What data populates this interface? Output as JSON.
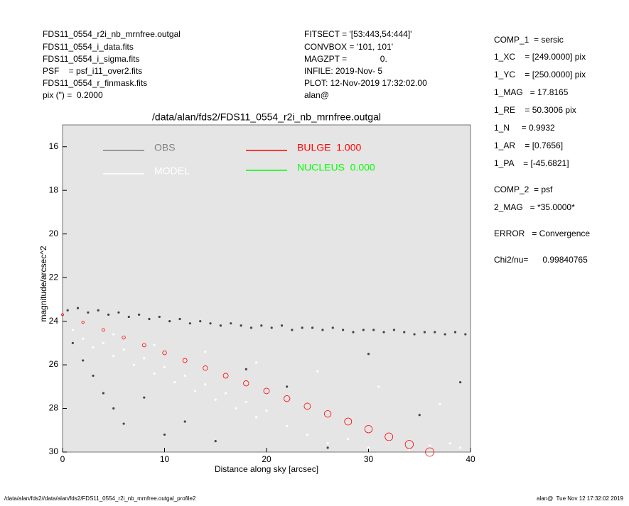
{
  "header": {
    "left": [
      "FDS11_0554_r2i_nb_mrnfree.outgal",
      "FDS11_0554_i_data.fits",
      "FDS11_0554_i_sigma.fits",
      "PSF    = psf_i11_over2.fits",
      "FDS11_0554_r_finmask.fits",
      "pix (\") =  0.2000"
    ],
    "middle": [
      "FITSECT = '[53:443,54:444]'",
      "CONVBOX = '101, 101'",
      "MAGZPT =              0.",
      "INFILE: 2019-Nov- 5",
      "PLOT: 12-Nov-2019 17:32:02.00",
      "alan@"
    ],
    "right": [
      "COMP_1  = sersic",
      "1_XC    = [249.0000] pix",
      "1_YC    = [250.0000] pix",
      "1_MAG   = 17.8165",
      "1_RE    = 50.3006 pix",
      "1_N     = 0.9932",
      "1_AR    = [0.7656]",
      "1_PA    = [-45.6821]",
      "COMP_2  = psf",
      "2_MAG   = *35.0000*",
      "ERROR   = Convergence",
      "Chi2/nu=      0.99840765"
    ]
  },
  "footer": {
    "left": "/data/alan/fds2//data/alan/fds2/FDS11_0554_r2i_nb_mrnfree.outgal_profile2",
    "right": "alan@  Tue Nov 12 17:32:02 2019"
  },
  "chart_data": {
    "type": "scatter",
    "title": "/data/alan/fds2/FDS11_0554_r2i_nb_mrnfree.outgal",
    "xlabel": "Distance along sky [arcsec]",
    "ylabel": "magnitude/arcsec^2",
    "xlim": [
      0,
      40
    ],
    "xticks": [
      0,
      10,
      20,
      30,
      40
    ],
    "ylim": [
      15,
      30
    ],
    "y_inverted": true,
    "yticks": [
      16,
      18,
      20,
      22,
      24,
      26,
      28,
      30
    ],
    "series": [
      {
        "name": "OBS",
        "color": "#444444",
        "legend_color": "#808080",
        "x": [
          0.5,
          1.5,
          2.5,
          3.5,
          4.5,
          5.5,
          6.5,
          7.5,
          8.5,
          9.5,
          10.5,
          11.5,
          12.5,
          13.5,
          14.5,
          15.5,
          16.5,
          17.5,
          18.5,
          19.5,
          20.5,
          21.5,
          22.5,
          23.5,
          24.5,
          25.5,
          26.5,
          27.5,
          28.5,
          29.5,
          30.5,
          31.5,
          32.5,
          33.5,
          34.5,
          35.5,
          36.5,
          37.5,
          38.5,
          39.5,
          1,
          2,
          3,
          4,
          5,
          6,
          8,
          10,
          12,
          15,
          18,
          22,
          26,
          30,
          35,
          39
        ],
        "values": [
          23.5,
          23.4,
          23.6,
          23.5,
          23.7,
          23.6,
          23.8,
          23.7,
          23.9,
          23.8,
          24.0,
          23.9,
          24.1,
          24.0,
          24.1,
          24.2,
          24.1,
          24.2,
          24.3,
          24.2,
          24.3,
          24.2,
          24.4,
          24.3,
          24.3,
          24.4,
          24.3,
          24.4,
          24.5,
          24.4,
          24.4,
          24.5,
          24.4,
          24.5,
          24.6,
          24.5,
          24.5,
          24.6,
          24.5,
          24.6,
          25.0,
          25.8,
          26.5,
          27.3,
          28.0,
          28.7,
          27.5,
          29.2,
          28.6,
          29.5,
          26.2,
          27.0,
          29.8,
          25.5,
          28.3,
          26.8
        ]
      },
      {
        "name": "MODEL",
        "color": "#ffffff",
        "legend_color": "#ffffff",
        "x": [
          1,
          2,
          3,
          4,
          5,
          6,
          7,
          8,
          9,
          10,
          11,
          12,
          13,
          14,
          15,
          16,
          17,
          18,
          19,
          20,
          22,
          24,
          26,
          28,
          30,
          32,
          34,
          36,
          38,
          39,
          5,
          9,
          14,
          19,
          25,
          31,
          37
        ],
        "values": [
          24.4,
          24.8,
          25.2,
          25.0,
          25.6,
          25.3,
          26.0,
          25.7,
          26.4,
          26.1,
          26.8,
          26.5,
          27.2,
          26.9,
          27.6,
          27.3,
          28.0,
          27.7,
          28.4,
          28.1,
          28.8,
          29.2,
          29.6,
          29.4,
          29.8,
          29.5,
          29.9,
          29.7,
          29.6,
          29.8,
          24.6,
          25.1,
          25.4,
          25.9,
          26.3,
          27.0,
          27.8
        ]
      },
      {
        "name": "BULGE  1.000",
        "color": "#ff0000",
        "legend_color": "#ff0000",
        "x": [
          0,
          2,
          4,
          6,
          8,
          10,
          12,
          14,
          16,
          18,
          20,
          22,
          24,
          26,
          28,
          30,
          32,
          34,
          36
        ],
        "values": [
          23.7,
          24.05,
          24.4,
          24.75,
          25.1,
          25.45,
          25.8,
          26.15,
          26.5,
          26.85,
          27.2,
          27.55,
          27.9,
          28.25,
          28.6,
          28.95,
          29.3,
          29.65,
          30.0
        ]
      },
      {
        "name": "NUCLEUS  0.000",
        "color": "#00ff00",
        "legend_color": "#00ff00",
        "x": [],
        "values": []
      }
    ]
  }
}
